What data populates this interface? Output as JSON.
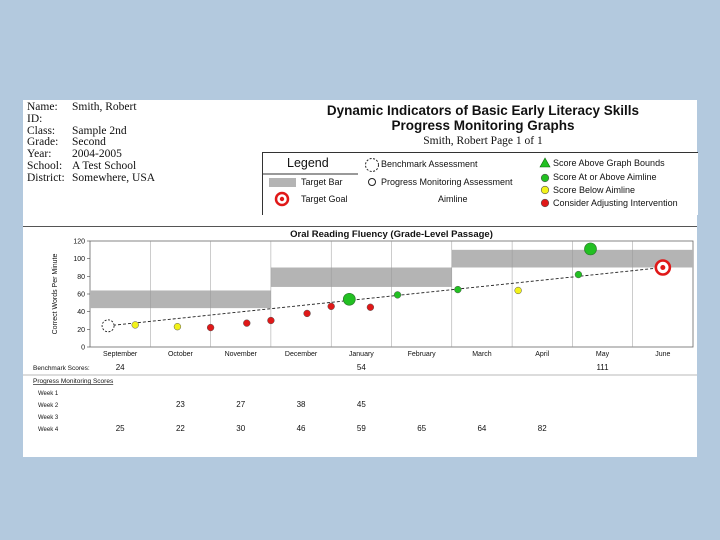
{
  "student": {
    "rows": [
      {
        "label": "Name:",
        "value": "Smith, Robert"
      },
      {
        "label": "ID:",
        "value": ""
      },
      {
        "label": "Class:",
        "value": "Sample 2nd"
      },
      {
        "label": "Grade:",
        "value": "Second"
      },
      {
        "label": "Year:",
        "value": "2004-2005"
      },
      {
        "label": "School:",
        "value": "A Test School"
      },
      {
        "label": "District:",
        "value": "Somewhere, USA"
      }
    ]
  },
  "report": {
    "title_line1": "Dynamic Indicators of Basic Early Literacy Skills",
    "title_line2": "Progress Monitoring Graphs",
    "subtitle": "Smith, Robert Page 1 of 1"
  },
  "legend": {
    "title": "Legend",
    "benchmark": "Benchmark Assessment",
    "target_bar": "Target Bar",
    "progress": "Progress Monitoring Assessment",
    "target_goal": "Target Goal",
    "aimline": "Aimline",
    "above_bounds": "Score Above Graph Bounds",
    "at_above": "Score At or Above Aimline",
    "below": "Score Below Aimline",
    "consider": "Consider Adjusting Intervention"
  },
  "colors": {
    "green": "#22c022",
    "yellow": "#f2f21a",
    "red": "#e01818",
    "target_bar": "#b4b4b4",
    "background": "#b3c9de"
  },
  "chart_data": {
    "type": "scatter",
    "title": "Oral Reading Fluency (Grade-Level Passage)",
    "ylabel": "Correct Words Per Minute",
    "xlabel": "",
    "categories": [
      "September",
      "October",
      "November",
      "December",
      "January",
      "February",
      "March",
      "April",
      "May",
      "June"
    ],
    "ylim": [
      0,
      120
    ],
    "yticks": [
      0,
      20,
      40,
      60,
      80,
      100,
      120
    ],
    "grid": "vertical month lines",
    "target_bars": [
      {
        "from_month": 0,
        "to_month": 3,
        "low": 44,
        "high": 64
      },
      {
        "from_month": 3,
        "to_month": 6,
        "low": 68,
        "high": 90
      },
      {
        "from_month": 6,
        "to_month": 10,
        "low": 90,
        "high": 110
      }
    ],
    "aimline": {
      "start": {
        "x": 0.3,
        "y": 24
      },
      "end": {
        "x": 9.5,
        "y": 90
      }
    },
    "target_goal": {
      "x": 9.5,
      "y": 90
    },
    "benchmark_points": [
      {
        "x": 0.3,
        "y": 24,
        "color": "white"
      },
      {
        "x": 4.3,
        "y": 54,
        "color": "green"
      },
      {
        "x": 8.3,
        "y": 111,
        "color": "green"
      }
    ],
    "progress_points": [
      {
        "x": 0.75,
        "y": 25,
        "color": "yellow"
      },
      {
        "x": 1.45,
        "y": 23,
        "color": "yellow"
      },
      {
        "x": 2.0,
        "y": 22,
        "color": "red"
      },
      {
        "x": 2.6,
        "y": 27,
        "color": "red"
      },
      {
        "x": 3.0,
        "y": 30,
        "color": "red"
      },
      {
        "x": 3.6,
        "y": 38,
        "color": "red"
      },
      {
        "x": 4.0,
        "y": 46,
        "color": "red"
      },
      {
        "x": 4.65,
        "y": 45,
        "color": "red"
      },
      {
        "x": 5.1,
        "y": 59,
        "color": "green"
      },
      {
        "x": 6.1,
        "y": 65,
        "color": "green"
      },
      {
        "x": 7.1,
        "y": 64,
        "color": "yellow"
      },
      {
        "x": 8.1,
        "y": 82,
        "color": "green"
      }
    ]
  },
  "scores": {
    "benchmark_label": "Benchmark Scores:",
    "benchmark": [
      "24",
      "",
      "",
      "",
      "54",
      "",
      "",
      "",
      "111",
      ""
    ],
    "pm_title": "Progress Monitoring Scores",
    "weeks": [
      {
        "label": "Week 1",
        "values": [
          "",
          "",
          "",
          "",
          "",
          "",
          "",
          "",
          "",
          ""
        ]
      },
      {
        "label": "Week 2",
        "values": [
          "",
          "23",
          "27",
          "38",
          "45",
          "",
          "",
          "",
          "",
          ""
        ]
      },
      {
        "label": "Week 3",
        "values": [
          "",
          "",
          "",
          "",
          "",
          "",
          "",
          "",
          "",
          ""
        ]
      },
      {
        "label": "Week 4",
        "values": [
          "25",
          "22",
          "30",
          "46",
          "59",
          "65",
          "64",
          "82",
          "",
          ""
        ]
      }
    ]
  }
}
